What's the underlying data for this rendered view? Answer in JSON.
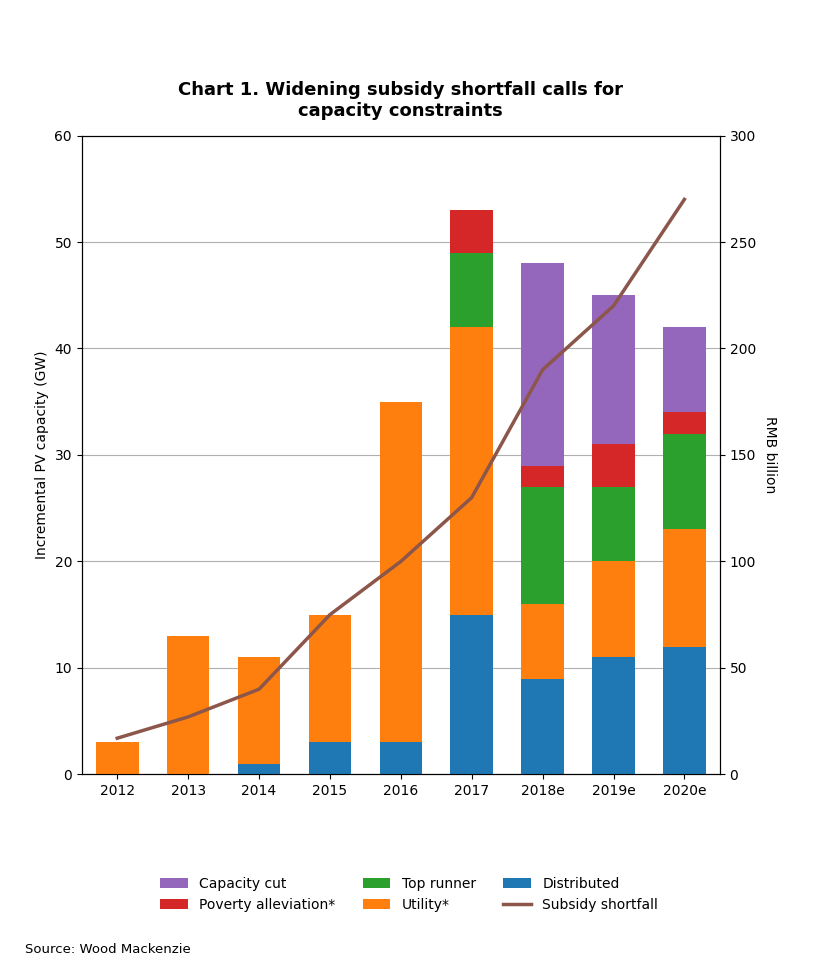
{
  "chart_data": {
    "type": "bar",
    "title": "Chart 1. Widening subsidy shortfall calls for\ncapacity constraints",
    "categories": [
      "2012",
      "2013",
      "2014",
      "2015",
      "2016",
      "2017",
      "2018e",
      "2019e",
      "2020e"
    ],
    "stacked": true,
    "series": [
      {
        "name": "Distributed",
        "type": "bar",
        "values": [
          0.0,
          0.0,
          1.0,
          3.0,
          3.0,
          15.0,
          9.0,
          11.0,
          12.0
        ]
      },
      {
        "name": "Utility*",
        "type": "bar",
        "values": [
          3.0,
          13.0,
          10.0,
          12.0,
          32.0,
          27.0,
          7.0,
          9.0,
          11.0
        ]
      },
      {
        "name": "Top runner",
        "type": "bar",
        "values": [
          0.0,
          0.0,
          0.0,
          0.0,
          0.0,
          7.0,
          11.0,
          7.0,
          9.0
        ]
      },
      {
        "name": "Poverty alleviation*",
        "type": "bar",
        "values": [
          0.0,
          0.0,
          0.0,
          0.0,
          0.0,
          4.0,
          2.0,
          4.0,
          2.0
        ]
      },
      {
        "name": "Capacity cut",
        "type": "bar",
        "values": [
          0.0,
          0.0,
          0.0,
          0.0,
          0.0,
          0.0,
          19.0,
          14.0,
          8.0
        ]
      },
      {
        "name": "Subsidy shortfall",
        "type": "line",
        "axis": "y2",
        "values": [
          17,
          27,
          40,
          75,
          100,
          130,
          190,
          220,
          270
        ]
      }
    ],
    "ylabel": "Incremental PV capacity (GW)",
    "y2label": "RMB billion",
    "ylim": [
      0,
      60
    ],
    "yticks": [
      0,
      10,
      20,
      30,
      40,
      50,
      60
    ],
    "y2lim": [
      0,
      300
    ],
    "y2ticks": [
      0,
      50,
      100,
      150,
      200,
      250,
      300
    ],
    "grid": true,
    "legend": "lower center",
    "annotations": [
      "Source: Wood Mackenzie"
    ]
  }
}
